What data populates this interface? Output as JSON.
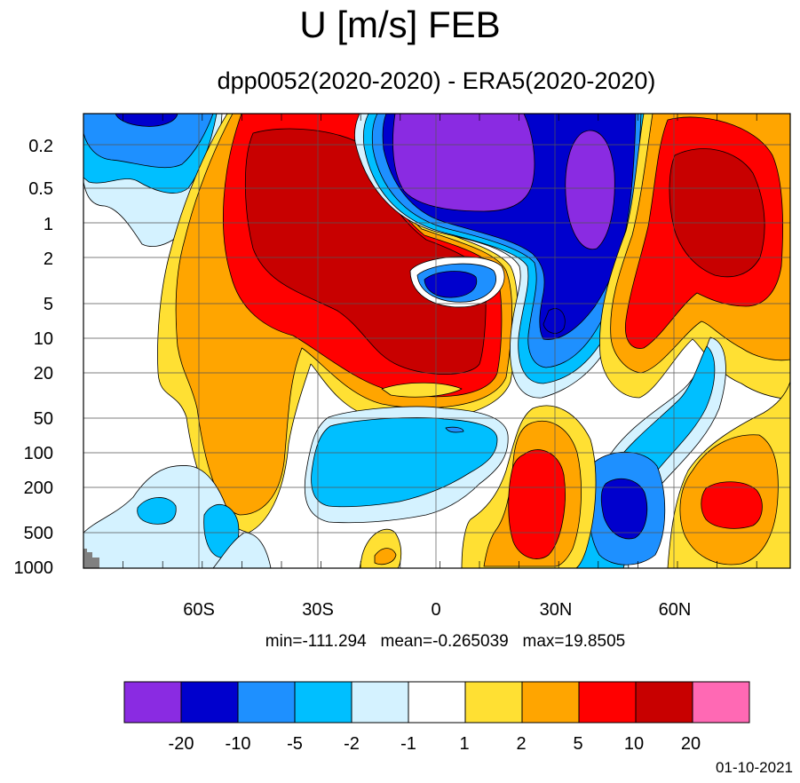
{
  "title": "U [m/s] FEB",
  "subtitle": "dpp0052(2020-2020) - ERA5(2020-2020)",
  "y_ticks": [
    "0.2",
    "0.5",
    "1",
    "2",
    "5",
    "10",
    "20",
    "50",
    "100",
    "200",
    "500",
    "1000"
  ],
  "x_ticks": [
    "60S",
    "30S",
    "0",
    "30N",
    "60N"
  ],
  "stats": "min=-111.294   mean=-0.265039   max=19.8505",
  "colorbar": {
    "colors": [
      "#8a2be2",
      "#0000cd",
      "#1e90ff",
      "#00bfff",
      "#d4f2ff",
      "#ffffff",
      "#ffe033",
      "#ffa500",
      "#ff0000",
      "#c80000",
      "#ff69b4"
    ],
    "labels": [
      "-20",
      "-10",
      "-5",
      "-2",
      "-1",
      "1",
      "2",
      "5",
      "10",
      "20"
    ]
  },
  "date": "01-10-2021",
  "chart_data": {
    "type": "heatmap",
    "title": "U [m/s] FEB",
    "subtitle": "dpp0052(2020-2020) - ERA5(2020-2020)",
    "x_ticks": [
      "60S",
      "30S",
      "0",
      "30N",
      "60N"
    ],
    "y_ticks": [
      "0.2",
      "0.5",
      "1",
      "2",
      "5",
      "10",
      "20",
      "50",
      "100",
      "200",
      "500",
      "1000"
    ],
    "y_scale": "log",
    "contour_levels": [
      -20,
      -10,
      -5,
      -2,
      -1,
      1,
      2,
      5,
      10,
      20
    ],
    "min": -111.294,
    "mean": -0.265039,
    "max": 19.8505,
    "grid": true
  }
}
